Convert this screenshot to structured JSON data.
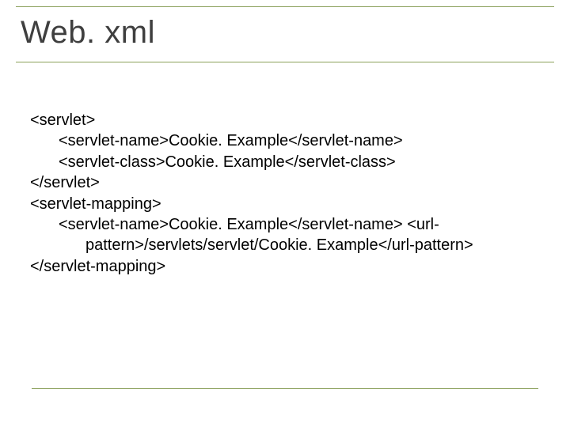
{
  "colors": {
    "rule": "#8aa05a",
    "title": "#3f3f3f",
    "text": "#000000",
    "background": "#ffffff"
  },
  "title": "Web. xml",
  "fontsize": {
    "title": 40,
    "body": 20
  },
  "code": {
    "l1": "<servlet>",
    "l2": "<servlet-name>Cookie. Example</servlet-name>",
    "l3": "<servlet-class>Cookie. Example</servlet-class>",
    "l4": " </servlet>",
    "l5": "<servlet-mapping>",
    "l6": "<servlet-name>Cookie. Example</servlet-name>         <url-",
    "l6b": "pattern>/servlets/servlet/Cookie. Example</url-pattern>",
    "l7": "</servlet-mapping>"
  }
}
